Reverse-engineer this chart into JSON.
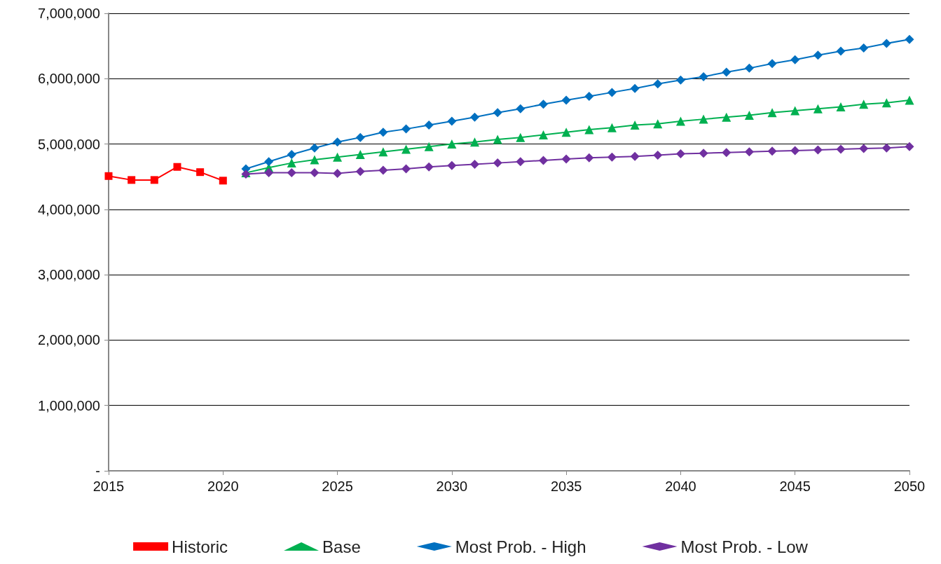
{
  "chart_data": {
    "type": "line",
    "xlim": [
      2015,
      2050
    ],
    "xticks": [
      2015,
      2020,
      2025,
      2030,
      2035,
      2040,
      2045,
      2050
    ],
    "ylim": [
      0,
      7000000
    ],
    "yticks": [
      {
        "value": 0,
        "label": "-"
      },
      {
        "value": 1000000,
        "label": "1,000,000"
      },
      {
        "value": 2000000,
        "label": "2,000,000"
      },
      {
        "value": 3000000,
        "label": "3,000,000"
      },
      {
        "value": 4000000,
        "label": "4,000,000"
      },
      {
        "value": 5000000,
        "label": "5,000,000"
      },
      {
        "value": 6000000,
        "label": "6,000,000"
      },
      {
        "value": 7000000,
        "label": "7,000,000"
      }
    ],
    "grid": "y",
    "legend": "bottom",
    "line_style": "solid",
    "series": [
      {
        "name": "Historic",
        "color": "#ff0000",
        "marker": "square",
        "x": [
          2015,
          2016,
          2017,
          2018,
          2019,
          2020
        ],
        "values": [
          4510000,
          4450000,
          4450000,
          4650000,
          4570000,
          4440000
        ]
      },
      {
        "name": "Base",
        "color": "#00b050",
        "marker": "triangle",
        "x": [
          2021,
          2022,
          2023,
          2024,
          2025,
          2026,
          2027,
          2028,
          2029,
          2030,
          2031,
          2032,
          2033,
          2034,
          2035,
          2036,
          2037,
          2038,
          2039,
          2040,
          2041,
          2042,
          2043,
          2044,
          2045,
          2046,
          2047,
          2048,
          2049,
          2050
        ],
        "values": [
          4560000,
          4640000,
          4710000,
          4760000,
          4800000,
          4840000,
          4880000,
          4920000,
          4960000,
          5000000,
          5030000,
          5070000,
          5100000,
          5140000,
          5180000,
          5220000,
          5250000,
          5290000,
          5310000,
          5350000,
          5380000,
          5410000,
          5440000,
          5480000,
          5510000,
          5540000,
          5570000,
          5610000,
          5630000,
          5670000
        ]
      },
      {
        "name": "Most Prob. - High",
        "color": "#0070c0",
        "marker": "diamond",
        "x": [
          2021,
          2022,
          2023,
          2024,
          2025,
          2026,
          2027,
          2028,
          2029,
          2030,
          2031,
          2032,
          2033,
          2034,
          2035,
          2036,
          2037,
          2038,
          2039,
          2040,
          2041,
          2042,
          2043,
          2044,
          2045,
          2046,
          2047,
          2048,
          2049,
          2050
        ],
        "values": [
          4620000,
          4730000,
          4840000,
          4940000,
          5030000,
          5100000,
          5180000,
          5230000,
          5290000,
          5350000,
          5410000,
          5480000,
          5540000,
          5610000,
          5670000,
          5730000,
          5790000,
          5850000,
          5920000,
          5980000,
          6030000,
          6100000,
          6160000,
          6230000,
          6290000,
          6360000,
          6420000,
          6470000,
          6540000,
          6600000
        ]
      },
      {
        "name": "Most Prob. - Low",
        "color": "#7030a0",
        "marker": "diamond",
        "x": [
          2021,
          2022,
          2023,
          2024,
          2025,
          2026,
          2027,
          2028,
          2029,
          2030,
          2031,
          2032,
          2033,
          2034,
          2035,
          2036,
          2037,
          2038,
          2039,
          2040,
          2041,
          2042,
          2043,
          2044,
          2045,
          2046,
          2047,
          2048,
          2049,
          2050
        ],
        "values": [
          4540000,
          4560000,
          4560000,
          4560000,
          4550000,
          4580000,
          4600000,
          4620000,
          4650000,
          4670000,
          4690000,
          4710000,
          4730000,
          4750000,
          4770000,
          4790000,
          4800000,
          4810000,
          4830000,
          4850000,
          4860000,
          4870000,
          4880000,
          4890000,
          4900000,
          4910000,
          4920000,
          4930000,
          4940000,
          4960000
        ]
      }
    ]
  }
}
